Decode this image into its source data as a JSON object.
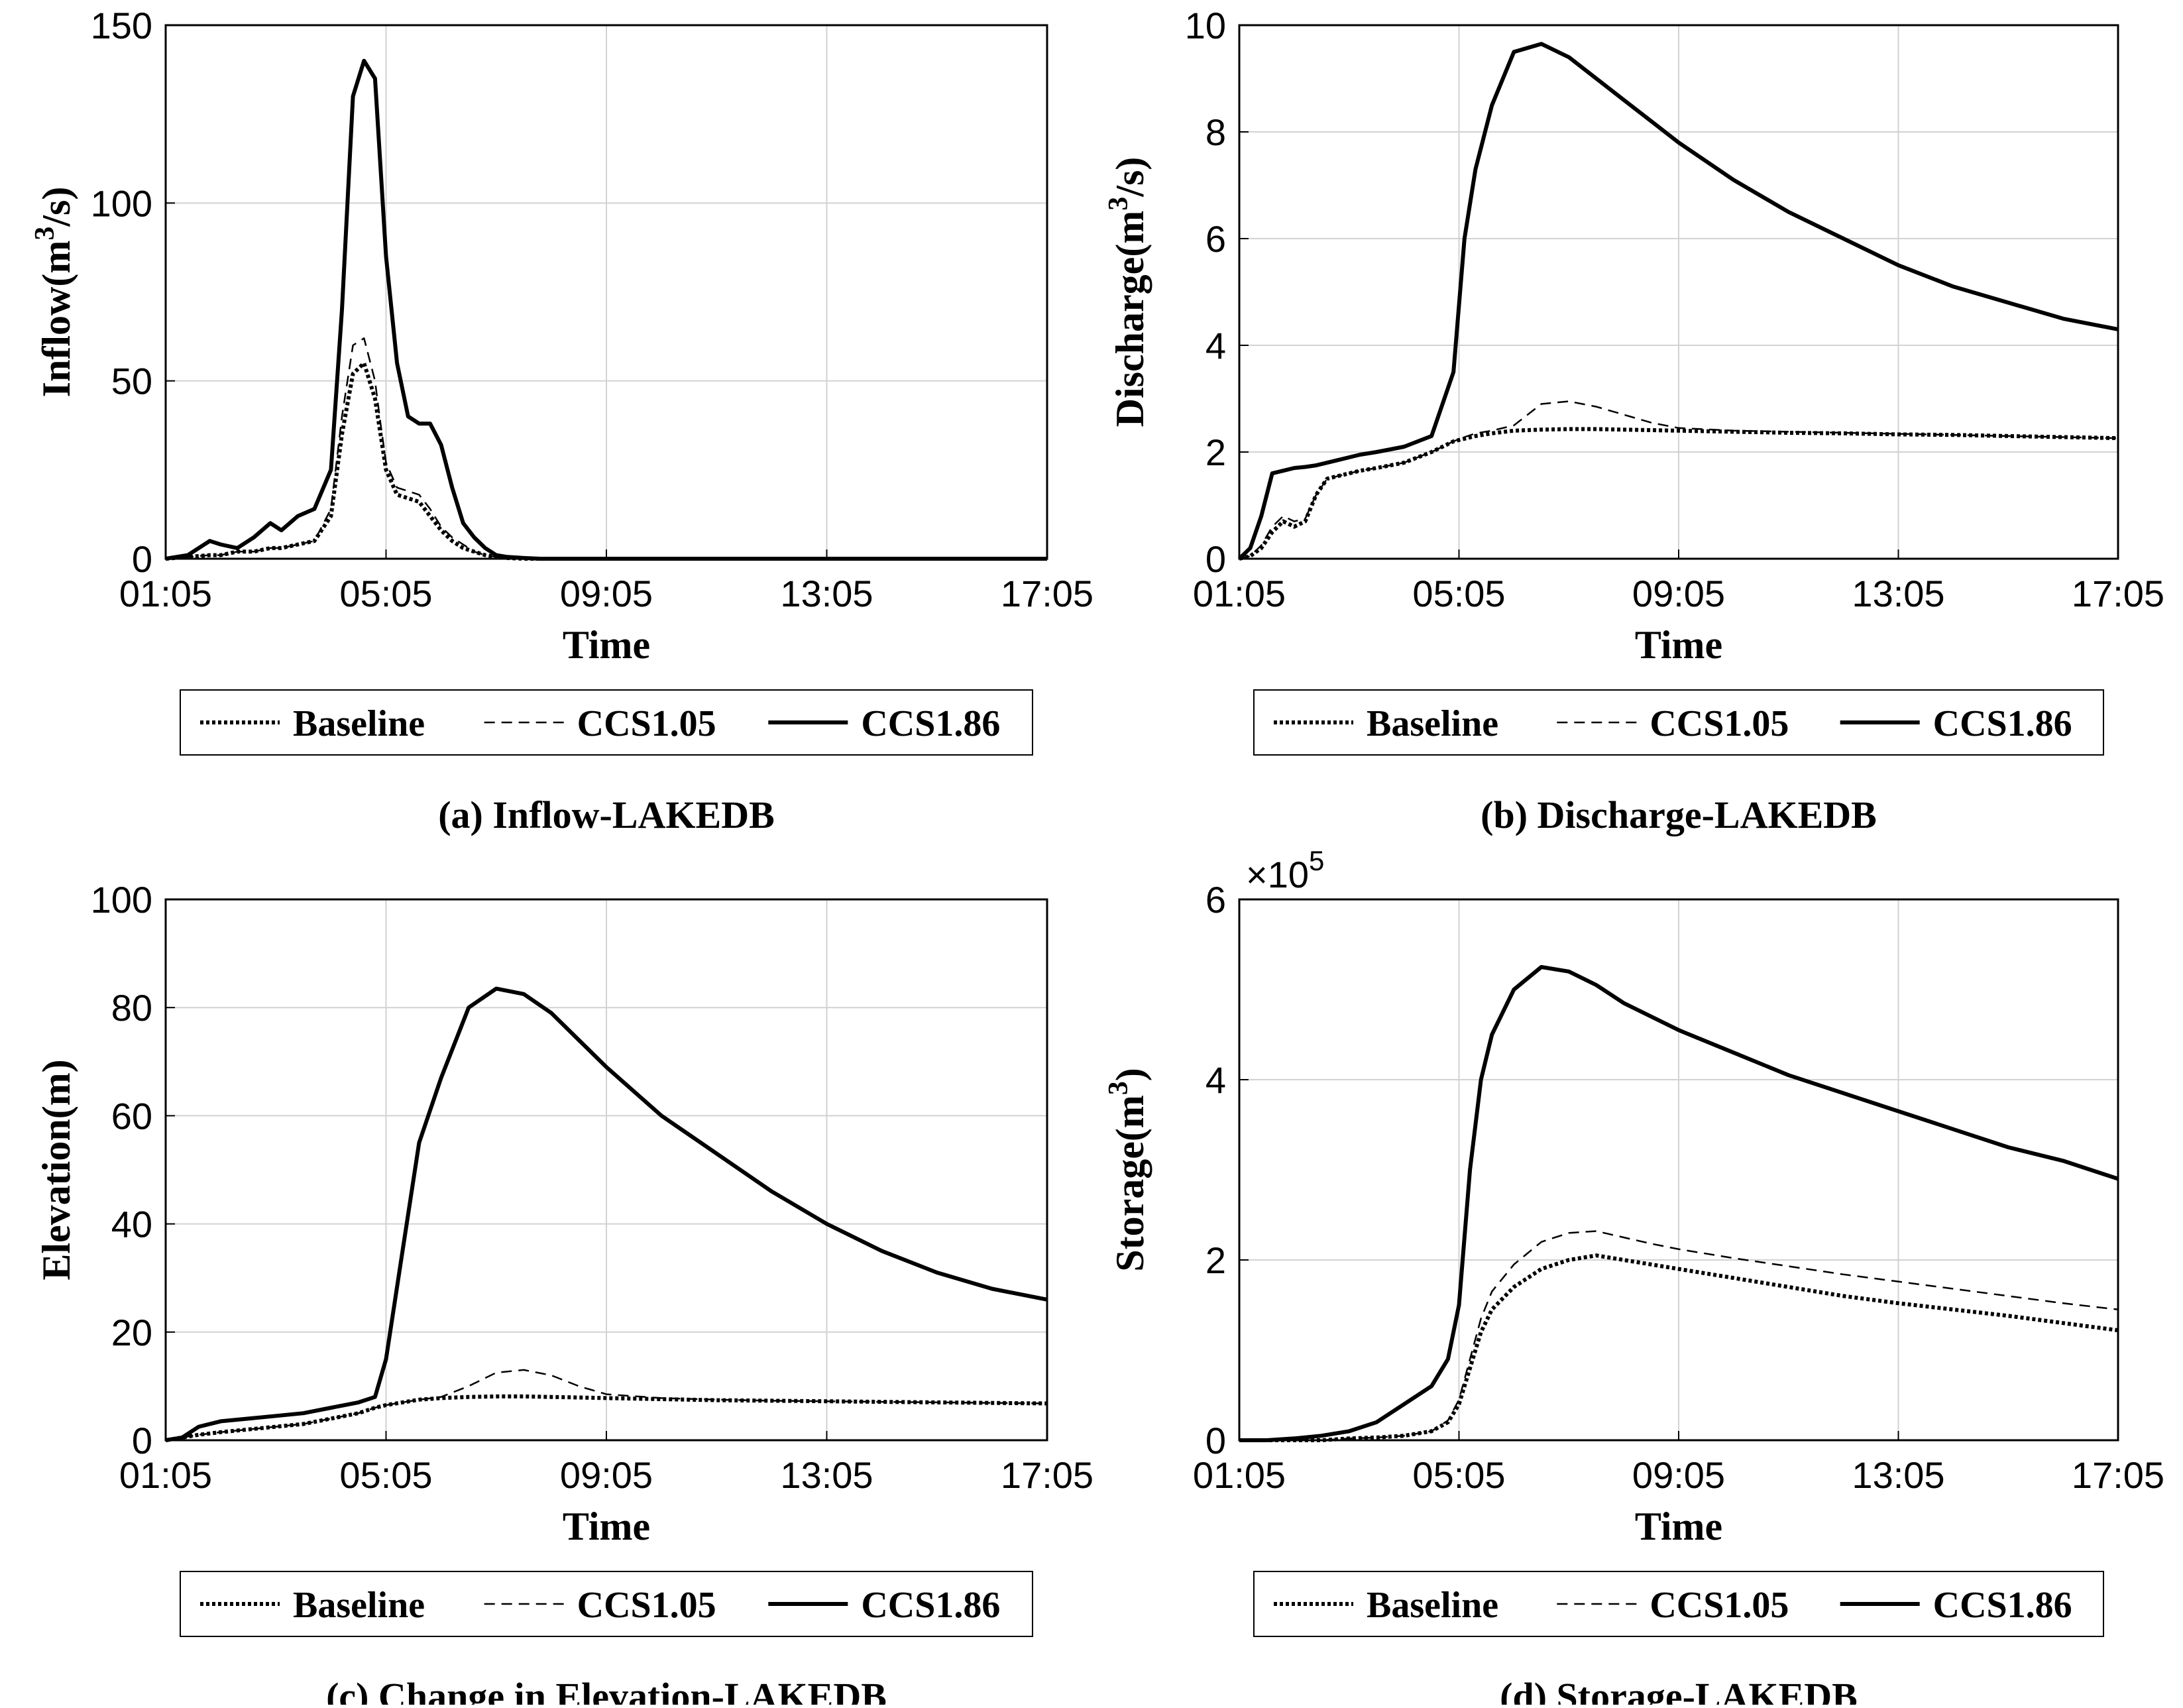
{
  "legend_labels": [
    "Baseline",
    "CCS1.05",
    "CCS1.86"
  ],
  "chart_data": [
    {
      "type": "line",
      "caption": "(a) Inflow-LAKEDB",
      "xlabel": "Time",
      "ylabel_prefix": "Inflow(m",
      "ylabel_sup": "3",
      "ylabel_suffix": "/s)",
      "x_ticks": [
        "01:05",
        "05:05",
        "09:05",
        "13:05",
        "17:05"
      ],
      "xlim": [
        0,
        16
      ],
      "y_ticks": [
        "0",
        "50",
        "100",
        "150"
      ],
      "ylim": [
        0,
        150
      ],
      "grid": true,
      "legend_position": "below",
      "x": [
        0,
        0.4,
        0.8,
        1.0,
        1.3,
        1.6,
        1.9,
        2.1,
        2.4,
        2.7,
        3.0,
        3.2,
        3.4,
        3.6,
        3.8,
        3.9,
        4.0,
        4.2,
        4.4,
        4.6,
        4.8,
        5.0,
        5.2,
        5.4,
        5.6,
        5.8,
        6.0,
        6.2,
        6.5,
        6.8,
        7.2,
        7.6,
        8.0,
        16
      ],
      "series": [
        {
          "name": "Baseline",
          "dash": "dotted",
          "width": 6,
          "values": [
            0,
            0.5,
            1,
            1,
            2,
            2,
            3,
            3,
            4,
            5,
            12,
            35,
            52,
            55,
            45,
            35,
            25,
            18,
            17,
            16,
            12,
            8,
            5,
            3,
            2,
            1,
            0.5,
            0.2,
            0,
            0,
            0,
            0,
            0,
            0
          ]
        },
        {
          "name": "CCS1.05",
          "dash": "dashed",
          "width": 2.5,
          "values": [
            0,
            0.5,
            1,
            1,
            2,
            2,
            3,
            3,
            4,
            5,
            14,
            40,
            60,
            62,
            50,
            38,
            27,
            20,
            19,
            18,
            14,
            9,
            6,
            4,
            2,
            1,
            0.5,
            0.2,
            0,
            0,
            0,
            0,
            0,
            0
          ]
        },
        {
          "name": "CCS1.86",
          "dash": "solid",
          "width": 6,
          "values": [
            0,
            1,
            5,
            4,
            3,
            6,
            10,
            8,
            12,
            14,
            25,
            70,
            130,
            140,
            135,
            110,
            85,
            55,
            40,
            38,
            38,
            32,
            20,
            10,
            6,
            3,
            1,
            0.5,
            0.2,
            0,
            0,
            0,
            0,
            0
          ]
        }
      ]
    },
    {
      "type": "line",
      "caption": "(b) Discharge-LAKEDB",
      "xlabel": "Time",
      "ylabel_prefix": "Discharge(m",
      "ylabel_sup": "3",
      "ylabel_suffix": "/s)",
      "x_ticks": [
        "01:05",
        "05:05",
        "09:05",
        "13:05",
        "17:05"
      ],
      "xlim": [
        0,
        16
      ],
      "y_ticks": [
        "0",
        "2",
        "4",
        "6",
        "8",
        "10"
      ],
      "ylim": [
        0,
        10
      ],
      "grid": true,
      "legend_position": "below",
      "x": [
        0,
        0.2,
        0.4,
        0.6,
        0.8,
        1.0,
        1.2,
        1.4,
        1.6,
        1.8,
        2.0,
        2.2,
        2.5,
        3.0,
        3.5,
        3.9,
        4.1,
        4.3,
        4.6,
        5.0,
        5.5,
        6.0,
        6.5,
        7.0,
        7.5,
        8.0,
        9.0,
        10.0,
        11.0,
        12.0,
        13.0,
        14.0,
        15.0,
        16.0
      ],
      "series": [
        {
          "name": "Baseline",
          "dash": "dotted",
          "width": 6,
          "values": [
            0,
            0.05,
            0.2,
            0.5,
            0.7,
            0.6,
            0.7,
            1.2,
            1.5,
            1.55,
            1.6,
            1.65,
            1.7,
            1.8,
            2.0,
            2.2,
            2.25,
            2.3,
            2.35,
            2.4,
            2.42,
            2.43,
            2.43,
            2.42,
            2.41,
            2.4,
            2.38,
            2.36,
            2.35,
            2.33,
            2.32,
            2.3,
            2.28,
            2.26
          ]
        },
        {
          "name": "CCS1.05",
          "dash": "dashed",
          "width": 2.5,
          "values": [
            0,
            0.05,
            0.25,
            0.6,
            0.8,
            0.7,
            0.75,
            1.2,
            1.5,
            1.55,
            1.6,
            1.65,
            1.7,
            1.8,
            2.0,
            2.2,
            2.28,
            2.35,
            2.4,
            2.5,
            2.9,
            2.95,
            2.85,
            2.7,
            2.55,
            2.45,
            2.4,
            2.38,
            2.36,
            2.34,
            2.32,
            2.3,
            2.28,
            2.26
          ]
        },
        {
          "name": "CCS1.86",
          "dash": "solid",
          "width": 6,
          "values": [
            0,
            0.2,
            0.8,
            1.6,
            1.65,
            1.7,
            1.72,
            1.75,
            1.8,
            1.85,
            1.9,
            1.95,
            2.0,
            2.1,
            2.3,
            3.5,
            6.0,
            7.3,
            8.5,
            9.5,
            9.65,
            9.4,
            9.0,
            8.6,
            8.2,
            7.8,
            7.1,
            6.5,
            6.0,
            5.5,
            5.1,
            4.8,
            4.5,
            4.3
          ]
        }
      ]
    },
    {
      "type": "line",
      "caption": "(c) Change in Elevation-LAKEDB",
      "xlabel": "Time",
      "ylabel_prefix": "Elevation(m)",
      "ylabel_sup": "",
      "ylabel_suffix": "",
      "x_ticks": [
        "01:05",
        "05:05",
        "09:05",
        "13:05",
        "17:05"
      ],
      "xlim": [
        0,
        16
      ],
      "y_ticks": [
        "0",
        "20",
        "40",
        "60",
        "80",
        "100"
      ],
      "ylim": [
        0,
        100
      ],
      "grid": true,
      "legend_position": "below",
      "x": [
        0,
        0.3,
        0.6,
        1.0,
        1.5,
        2.0,
        2.5,
        3.0,
        3.5,
        3.8,
        4.0,
        4.3,
        4.6,
        5.0,
        5.5,
        6.0,
        6.5,
        7.0,
        7.5,
        8.0,
        9.0,
        10.0,
        11.0,
        12.0,
        13.0,
        14.0,
        15.0,
        16.0
      ],
      "series": [
        {
          "name": "Baseline",
          "dash": "dotted",
          "width": 6,
          "values": [
            0,
            0.5,
            1,
            1.5,
            2,
            2.5,
            3,
            4,
            5,
            6,
            6.5,
            7,
            7.5,
            7.8,
            8,
            8.1,
            8.1,
            8,
            7.9,
            7.8,
            7.6,
            7.4,
            7.3,
            7.2,
            7.1,
            7.0,
            6.9,
            6.8
          ]
        },
        {
          "name": "CCS1.05",
          "dash": "dashed",
          "width": 2.5,
          "values": [
            0,
            0.5,
            1,
            1.5,
            2,
            2.5,
            3,
            4,
            5,
            6,
            6.5,
            7,
            7.5,
            8,
            10,
            12.5,
            13,
            12,
            10,
            8.5,
            7.8,
            7.5,
            7.3,
            7.2,
            7.1,
            7.0,
            6.9,
            6.8
          ]
        },
        {
          "name": "CCS1.86",
          "dash": "solid",
          "width": 6,
          "values": [
            0,
            0.5,
            2.5,
            3.5,
            4,
            4.5,
            5,
            6,
            7,
            8,
            15,
            35,
            55,
            67,
            80,
            83.5,
            82.5,
            79,
            74,
            69,
            60,
            53,
            46,
            40,
            35,
            31,
            28,
            26
          ]
        }
      ]
    },
    {
      "type": "line",
      "caption": "(d) Storage-LAKEDB",
      "xlabel": "Time",
      "ylabel_prefix": "Storage(m",
      "ylabel_sup": "3",
      "ylabel_suffix": ")",
      "y_exponent": "5",
      "x_ticks": [
        "01:05",
        "05:05",
        "09:05",
        "13:05",
        "17:05"
      ],
      "xlim": [
        0,
        16
      ],
      "y_ticks": [
        "0",
        "2",
        "4",
        "6"
      ],
      "ylim": [
        0,
        6
      ],
      "grid": true,
      "legend_position": "below",
      "x": [
        0,
        0.5,
        1.0,
        1.5,
        2.0,
        2.5,
        3.0,
        3.5,
        3.8,
        4.0,
        4.2,
        4.4,
        4.6,
        5.0,
        5.5,
        6.0,
        6.5,
        7.0,
        7.5,
        8.0,
        9.0,
        10.0,
        11.0,
        12.0,
        13.0,
        14.0,
        15.0,
        16.0
      ],
      "series": [
        {
          "name": "Baseline",
          "dash": "dotted",
          "width": 6,
          "values": [
            0,
            0,
            0,
            0,
            0.02,
            0.03,
            0.05,
            0.1,
            0.2,
            0.4,
            0.8,
            1.2,
            1.45,
            1.7,
            1.9,
            2.0,
            2.05,
            2.0,
            1.95,
            1.9,
            1.8,
            1.7,
            1.6,
            1.52,
            1.45,
            1.38,
            1.3,
            1.22
          ]
        },
        {
          "name": "CCS1.05",
          "dash": "dashed",
          "width": 2.5,
          "values": [
            0,
            0,
            0,
            0,
            0.02,
            0.03,
            0.05,
            0.1,
            0.22,
            0.45,
            0.9,
            1.35,
            1.65,
            1.95,
            2.2,
            2.3,
            2.32,
            2.25,
            2.18,
            2.12,
            2.02,
            1.93,
            1.84,
            1.76,
            1.68,
            1.6,
            1.52,
            1.45
          ]
        },
        {
          "name": "CCS1.86",
          "dash": "solid",
          "width": 6,
          "values": [
            0,
            0,
            0.02,
            0.05,
            0.1,
            0.2,
            0.4,
            0.6,
            0.9,
            1.5,
            3.0,
            4.0,
            4.5,
            5.0,
            5.25,
            5.2,
            5.05,
            4.85,
            4.7,
            4.55,
            4.3,
            4.05,
            3.85,
            3.65,
            3.45,
            3.25,
            3.1,
            2.9
          ]
        }
      ]
    }
  ]
}
